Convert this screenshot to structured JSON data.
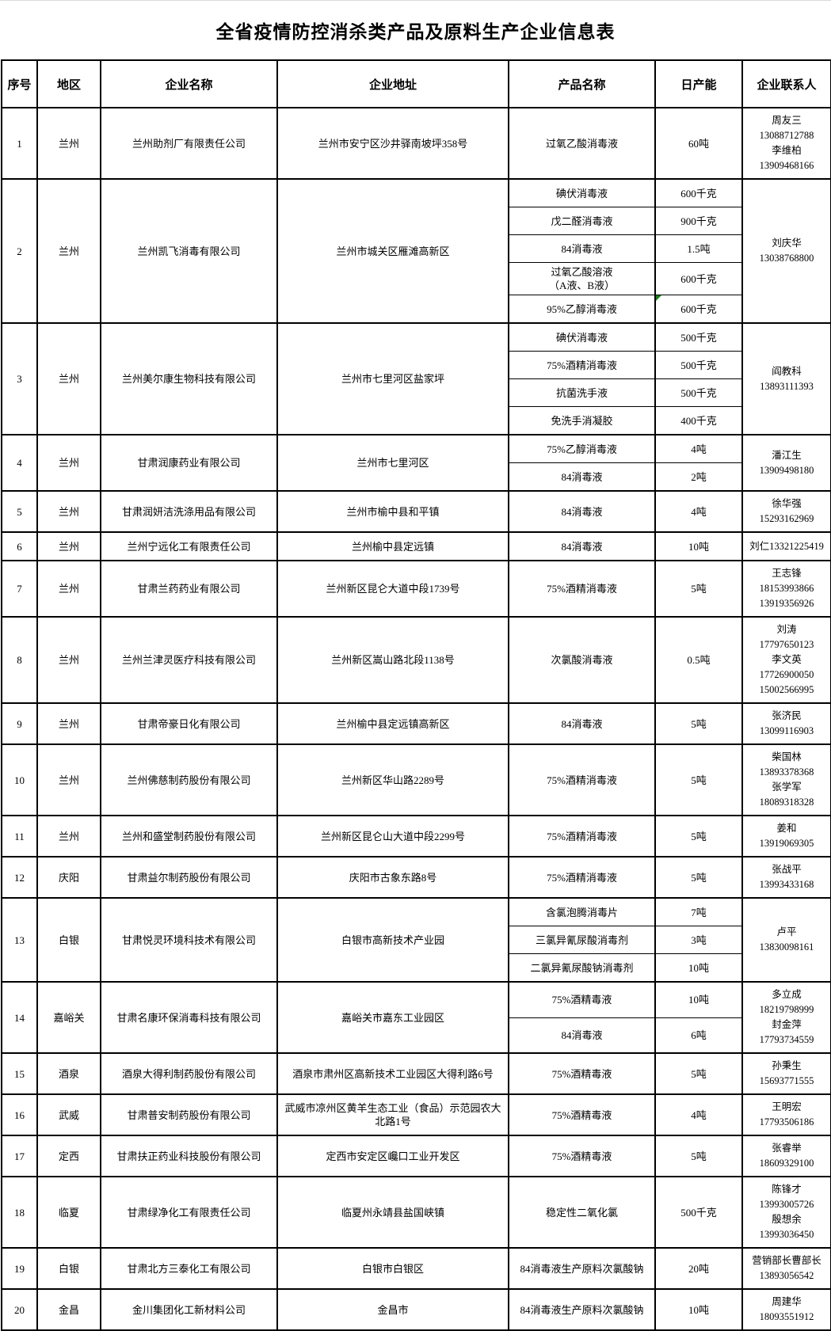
{
  "title": "全省疫情防控消杀类产品及原料生产企业信息表",
  "columns": [
    "序号",
    "地区",
    "企业名称",
    "企业地址",
    "产品名称",
    "日产能",
    "企业联系人"
  ],
  "green_marker_color": "#1e7c1e",
  "rows": [
    {
      "no": "1",
      "region": "兰州",
      "company": "兰州助剂厂有限责任公司",
      "address": "兰州市安宁区沙井驿南坡坪358号",
      "products": [
        {
          "name": "过氧乙酸消毒液",
          "qty": "60吨"
        }
      ],
      "contact_lines": [
        "周友三",
        "13088712788",
        "李维柏",
        "13909468166"
      ]
    },
    {
      "no": "2",
      "region": "兰州",
      "company": "兰州凯飞消毒有限公司",
      "address": "兰州市城关区雁滩高新区",
      "products": [
        {
          "name": "碘伏消毒液",
          "qty": "600千克"
        },
        {
          "name": "戊二醛消毒液",
          "qty": "900千克"
        },
        {
          "name": "84消毒液",
          "qty": "1.5吨"
        },
        {
          "name": "过氧乙酸溶液\n（A液、B液）",
          "qty": "600千克"
        },
        {
          "name": "95%乙醇消毒液",
          "qty": "600千克",
          "green_corner": true
        }
      ],
      "contact_lines": [
        "刘庆华",
        "13038768800"
      ]
    },
    {
      "no": "3",
      "region": "兰州",
      "company": "兰州美尔康生物科技有限公司",
      "address": "兰州市七里河区盐家坪",
      "products": [
        {
          "name": "碘伏消毒液",
          "qty": "500千克"
        },
        {
          "name": "75%酒精消毒液",
          "qty": "500千克"
        },
        {
          "name": "抗菌洗手液",
          "qty": "500千克"
        },
        {
          "name": "免洗手消凝胶",
          "qty": "400千克"
        }
      ],
      "contact_lines": [
        "阎教科",
        "13893111393"
      ]
    },
    {
      "no": "4",
      "region": "兰州",
      "company": "甘肃润康药业有限公司",
      "address": "兰州市七里河区",
      "products": [
        {
          "name": "75%乙醇消毒液",
          "qty": "4吨"
        },
        {
          "name": "84消毒液",
          "qty": "2吨"
        }
      ],
      "contact_lines": [
        "潘江生",
        "13909498180"
      ]
    },
    {
      "no": "5",
      "region": "兰州",
      "company": "甘肃润妍洁洗涤用品有限公司",
      "address": "兰州市榆中县和平镇",
      "products": [
        {
          "name": "84消毒液",
          "qty": "4吨"
        }
      ],
      "contact_lines": [
        "徐华强",
        "15293162969"
      ]
    },
    {
      "no": "6",
      "region": "兰州",
      "company": "兰州宁远化工有限责任公司",
      "address": "兰州榆中县定远镇",
      "products": [
        {
          "name": "84消毒液",
          "qty": "10吨"
        }
      ],
      "contact_lines": [
        "刘仁13321225419"
      ]
    },
    {
      "no": "7",
      "region": "兰州",
      "company": "甘肃兰药药业有限公司",
      "address": "兰州新区昆仑大道中段1739号",
      "products": [
        {
          "name": "75%酒精消毒液",
          "qty": "5吨"
        }
      ],
      "contact_lines": [
        "王志锋",
        "18153993866",
        "13919356926"
      ]
    },
    {
      "no": "8",
      "region": "兰州",
      "company": "兰州兰津灵医疗科技有限公司",
      "address": "兰州新区嵩山路北段1138号",
      "products": [
        {
          "name": "次氯酸消毒液",
          "qty": "0.5吨"
        }
      ],
      "contact_lines": [
        "刘涛",
        "17797650123",
        "李文英",
        "17726900050",
        "15002566995"
      ]
    },
    {
      "no": "9",
      "region": "兰州",
      "company": "甘肃帝豪日化有限公司",
      "address": "兰州榆中县定远镇高新区",
      "products": [
        {
          "name": "84消毒液",
          "qty": "5吨"
        }
      ],
      "contact_lines": [
        "张济民",
        "13099116903"
      ]
    },
    {
      "no": "10",
      "region": "兰州",
      "company": "兰州佛慈制药股份有限公司",
      "address": "兰州新区华山路2289号",
      "products": [
        {
          "name": "75%酒精消毒液",
          "qty": "5吨"
        }
      ],
      "contact_lines": [
        "柴国林",
        "13893378368",
        "张学军",
        "18089318328"
      ]
    },
    {
      "no": "11",
      "region": "兰州",
      "company": "兰州和盛堂制药股份有限公司",
      "address": "兰州新区昆仑山大道中段2299号",
      "products": [
        {
          "name": "75%酒精消毒液",
          "qty": "5吨"
        }
      ],
      "contact_lines": [
        "姜和",
        "13919069305"
      ]
    },
    {
      "no": "12",
      "region": "庆阳",
      "company": "甘肃益尔制药股份有限公司",
      "address": "庆阳市古象东路8号",
      "products": [
        {
          "name": "75%酒精消毒液",
          "qty": "5吨"
        }
      ],
      "contact_lines": [
        "张战平",
        "13993433168"
      ]
    },
    {
      "no": "13",
      "region": "白银",
      "company": "甘肃悦灵环境科技术有限公司",
      "address": "白银市高新技术产业园",
      "products": [
        {
          "name": "含氯泡腾消毒片",
          "qty": "7吨"
        },
        {
          "name": "三氯异氰尿酸消毒剂",
          "qty": "3吨"
        },
        {
          "name": "二氯异氰尿酸钠消毒剂",
          "qty": "10吨"
        }
      ],
      "contact_lines": [
        "卢平",
        "13830098161"
      ]
    },
    {
      "no": "14",
      "region": "嘉峪关",
      "company": "甘肃名康环保消毒科技有限公司",
      "address": "嘉峪关市嘉东工业园区",
      "products": [
        {
          "name": "75%酒精毒液",
          "qty": "10吨"
        },
        {
          "name": "84消毒液",
          "qty": "6吨"
        }
      ],
      "contact_lines": [
        "多立成",
        "18219798999",
        "封金萍",
        "17793734559"
      ]
    },
    {
      "no": "15",
      "region": "酒泉",
      "company": "酒泉大得利制药股份有限公司",
      "address": "酒泉市肃州区高新技术工业园区大得利路6号",
      "products": [
        {
          "name": "75%酒精毒液",
          "qty": "5吨"
        }
      ],
      "contact_lines": [
        "孙秉生",
        "15693771555"
      ]
    },
    {
      "no": "16",
      "region": "武威",
      "company": "甘肃普安制药股份有限公司",
      "address": "武威市凉州区黄羊生态工业（食品）示范园农大北路1号",
      "products": [
        {
          "name": "75%酒精毒液",
          "qty": "4吨"
        }
      ],
      "contact_lines": [
        "王明宏",
        "17793506186"
      ]
    },
    {
      "no": "17",
      "region": "定西",
      "company": "甘肃扶正药业科技股份有限公司",
      "address": "定西市安定区巉口工业开发区",
      "products": [
        {
          "name": "75%酒精毒液",
          "qty": "5吨"
        }
      ],
      "contact_lines": [
        "张睿举",
        "18609329100"
      ]
    },
    {
      "no": "18",
      "region": "临夏",
      "company": "甘肃绿净化工有限责任公司",
      "address": "临夏州永靖县盐国峡镇",
      "products": [
        {
          "name": "稳定性二氧化氯",
          "qty": "500千克"
        }
      ],
      "contact_lines": [
        "陈锋才",
        "13993005726",
        "殷想余",
        "13993036450"
      ]
    },
    {
      "no": "19",
      "region": "白银",
      "company": "甘肃北方三泰化工有限公司",
      "address": "白银市白银区",
      "products": [
        {
          "name": "84消毒液生产原料次氯酸钠",
          "qty": "20吨"
        }
      ],
      "contact_lines": [
        "营销部长曹部长",
        "13893056542"
      ]
    },
    {
      "no": "20",
      "region": "金昌",
      "company": "金川集团化工新材料公司",
      "address": "金昌市",
      "products": [
        {
          "name": "84消毒液生产原料次氯酸钠",
          "qty": "10吨"
        }
      ],
      "contact_lines": [
        "周建华",
        "18093551912"
      ]
    }
  ]
}
